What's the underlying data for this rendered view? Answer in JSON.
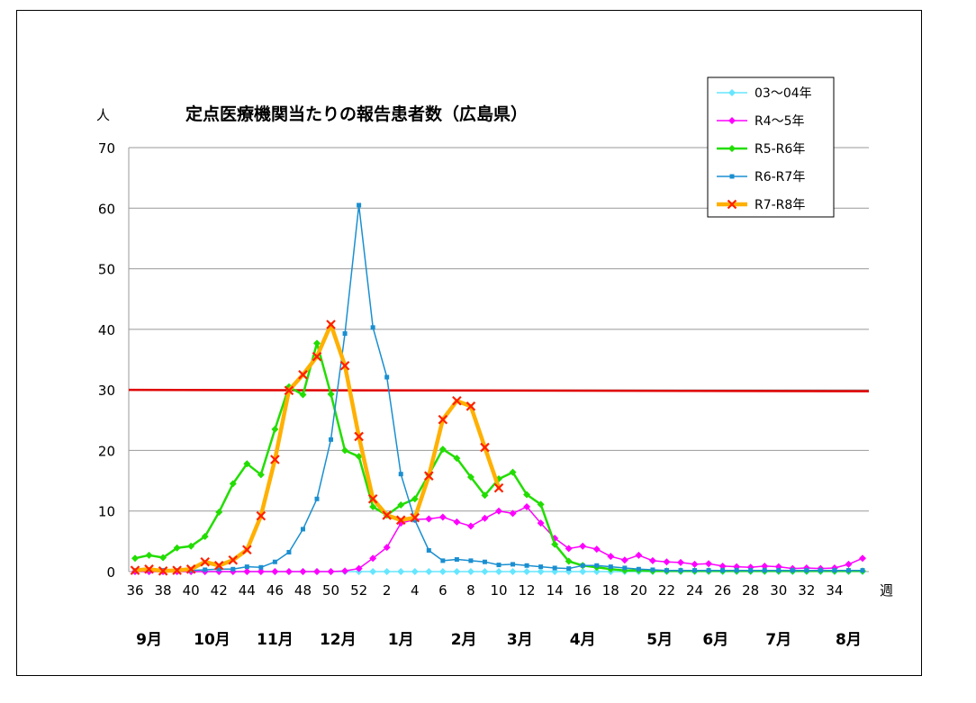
{
  "chart_data": {
    "type": "line",
    "title": "定点医療機関当たりの報告患者数（広島県）",
    "ylabel": "人",
    "xlabel": "週",
    "ylim": [
      0,
      70
    ],
    "yticks": [
      0,
      10,
      20,
      30,
      40,
      50,
      60,
      70
    ],
    "grid": true,
    "legend_position": "top-right",
    "x_tick_labels": [
      "36",
      "38",
      "40",
      "42",
      "44",
      "46",
      "48",
      "50",
      "52",
      "2",
      "4",
      "6",
      "8",
      "10",
      "12",
      "14",
      "16",
      "18",
      "20",
      "22",
      "24",
      "26",
      "28",
      "30",
      "32",
      "34"
    ],
    "month_labels": [
      {
        "label": "9月",
        "at_week_index": 1
      },
      {
        "label": "10月",
        "at_week_index": 5.5
      },
      {
        "label": "11月",
        "at_week_index": 10
      },
      {
        "label": "12月",
        "at_week_index": 14.5
      },
      {
        "label": "1月",
        "at_week_index": 19
      },
      {
        "label": "2月",
        "at_week_index": 23.5
      },
      {
        "label": "3月",
        "at_week_index": 27.5
      },
      {
        "label": "4月",
        "at_week_index": 32
      },
      {
        "label": "5月",
        "at_week_index": 37.5
      },
      {
        "label": "6月",
        "at_week_index": 41.5
      },
      {
        "label": "7月",
        "at_week_index": 46
      },
      {
        "label": "8月",
        "at_week_index": 51
      }
    ],
    "threshold": {
      "value": 30,
      "color": "#e00000"
    },
    "series": [
      {
        "name": "03～04年",
        "color": "#66e6ff",
        "marker": "diamond",
        "width": 1.5,
        "values": [
          0,
          0,
          0,
          0,
          0,
          0,
          0,
          0,
          0,
          0,
          0,
          0,
          0,
          0,
          0,
          0,
          0,
          0,
          0,
          0,
          0,
          0,
          0,
          0,
          0,
          0,
          0,
          0,
          0,
          0,
          0,
          0,
          0,
          0,
          0,
          0,
          0,
          0,
          0,
          0,
          0,
          0,
          0,
          0,
          0,
          0,
          0,
          0,
          0,
          0,
          0,
          0,
          0
        ]
      },
      {
        "name": "R4～5年",
        "color": "#ff00ff",
        "marker": "diamond",
        "width": 1.5,
        "values": [
          0,
          0,
          0,
          0,
          0,
          0,
          0,
          0,
          0,
          0,
          0,
          0,
          0,
          0,
          0,
          0.1,
          0.5,
          2.2,
          4,
          8,
          8.6,
          8.7,
          9,
          8.2,
          7.5,
          8.8,
          10,
          9.6,
          10.7,
          8,
          5.5,
          3.8,
          4.2,
          3.7,
          2.5,
          1.9,
          2.7,
          1.8,
          1.6,
          1.5,
          1.2,
          1.3,
          0.9,
          0.8,
          0.7,
          0.9,
          0.8,
          0.5,
          0.6,
          0.5,
          0.6,
          1.2,
          2.2
        ]
      },
      {
        "name": "R5-R6年",
        "color": "#22dd00",
        "marker": "diamond",
        "width": 2.5,
        "values": [
          2.2,
          2.7,
          2.3,
          3.9,
          4.2,
          5.8,
          9.8,
          14.5,
          17.8,
          16,
          23.5,
          30.5,
          29.2,
          37.7,
          29.3,
          20,
          19,
          10.7,
          9.3,
          11,
          12,
          16,
          20.2,
          18.7,
          15.6,
          12.6,
          15.3,
          16.4,
          12.7,
          11.1,
          4.5,
          1.7,
          1,
          0.7,
          0.4,
          0.2,
          0.2,
          0.1,
          0.1,
          0.1,
          0.1,
          0.1,
          0.1,
          0.1,
          0.1,
          0.1,
          0.1,
          0.1,
          0.1,
          0.1,
          0.1,
          0.1,
          0.1
        ]
      },
      {
        "name": "R6-R7年",
        "color": "#1a8fd0",
        "marker": "square",
        "width": 1.5,
        "values": [
          0.2,
          0.3,
          0.2,
          0.2,
          0.2,
          0.3,
          0.4,
          0.4,
          0.8,
          0.7,
          1.6,
          3.2,
          7,
          12,
          21.8,
          39.3,
          60.5,
          40.3,
          32.1,
          16.1,
          8.5,
          3.5,
          1.8,
          2,
          1.8,
          1.6,
          1.1,
          1.2,
          1,
          0.8,
          0.6,
          0.5,
          1,
          1,
          0.8,
          0.6,
          0.4,
          0.3,
          0.2,
          0.2,
          0.2,
          0.2,
          0.2,
          0.2,
          0.2,
          0.2,
          0.2,
          0.2,
          0.2,
          0.2,
          0.2,
          0.2,
          0.2
        ]
      },
      {
        "name": "R7-R8年",
        "color": "#ffb000",
        "marker": "cross",
        "marker_color": "#ff2000",
        "width": 4.5,
        "values": [
          0.2,
          0.4,
          0.1,
          0.2,
          0.4,
          1.6,
          1,
          1.9,
          3.6,
          9.2,
          18.5,
          29.9,
          32.5,
          35.5,
          40.8,
          34,
          22.3,
          12,
          9.3,
          8.5,
          8.9,
          15.8,
          25.1,
          28.2,
          27.3,
          20.5,
          13.8
        ]
      }
    ]
  }
}
